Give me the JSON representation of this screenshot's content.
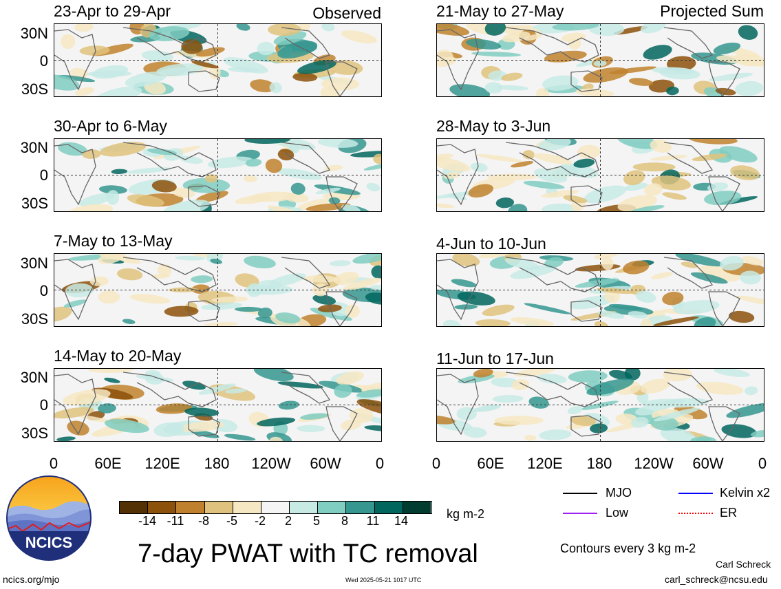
{
  "chart_data": {
    "type": "heatmap",
    "title": "7-day PWAT with TC removal",
    "variable": "7-day precipitable water anomaly with tropical cyclone removal",
    "units": "kg m-2",
    "x_axis_ticks": [
      "0",
      "60E",
      "120E",
      "180",
      "120W",
      "60W",
      "0"
    ],
    "y_axis_ticks": [
      "30N",
      "0",
      "30S"
    ],
    "colorbar_ticks": [
      "-14",
      "-11",
      "-8",
      "-5",
      "-2",
      "2",
      "5",
      "8",
      "11",
      "14"
    ],
    "colorbar_colors": [
      "#543005",
      "#8c510a",
      "#bf812d",
      "#dfc27d",
      "#f6e8c3",
      "#f5f5f5",
      "#c7eae5",
      "#80cdc1",
      "#35978f",
      "#01665e",
      "#003c30"
    ],
    "column_labels": {
      "left": "Observed",
      "right": "Projected Sum"
    },
    "panels": [
      {
        "period": "23-Apr to 29-Apr",
        "type": "Observed"
      },
      {
        "period": "30-Apr to 6-May",
        "type": "Observed"
      },
      {
        "period": "7-May to 13-May",
        "type": "Observed"
      },
      {
        "period": "14-May to 20-May",
        "type": "Observed"
      },
      {
        "period": "21-May to 27-May",
        "type": "Projected Sum"
      },
      {
        "period": "28-May to 3-Jun",
        "type": "Projected Sum"
      },
      {
        "period": "4-Jun to 10-Jun",
        "type": "Projected Sum"
      },
      {
        "period": "11-Jun to 17-Jun",
        "type": "Projected Sum"
      }
    ],
    "contour_legend": [
      {
        "name": "MJO",
        "color": "#000000"
      },
      {
        "name": "Kelvin x2",
        "color": "#0000ff"
      },
      {
        "name": "Low",
        "color": "#a020f0"
      },
      {
        "name": "ER",
        "color": "#ff0000"
      }
    ],
    "contour_interval_text": "Contours every 3 kg m-2"
  },
  "footer": {
    "logo_text": "NCICS",
    "site": "ncics.org/mjo",
    "timestamp": "Wed 2025-05-21 1017 UTC",
    "author": "Carl Schreck",
    "email": "carl_schreck@ncsu.edu"
  }
}
